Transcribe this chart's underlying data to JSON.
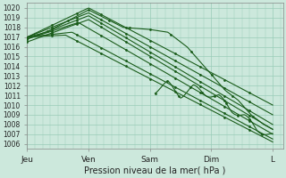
{
  "title": "Pression niveau de la mer( hPa )",
  "bg_color": "#cce8dc",
  "grid_color": "#99ccb8",
  "line_color": "#1a5c1a",
  "ylim": [
    1005.5,
    1020.5
  ],
  "yticks": [
    1006,
    1007,
    1008,
    1009,
    1010,
    1011,
    1012,
    1013,
    1014,
    1015,
    1016,
    1017,
    1018,
    1019,
    1020
  ],
  "xtick_labels": [
    "Jeu",
    "Ven",
    "Sam",
    "Dim",
    "L"
  ],
  "xtick_positions": [
    0,
    0.96,
    1.92,
    2.88,
    3.84
  ],
  "xlim": [
    0,
    4.0
  ],
  "lines": [
    {
      "x0": 0,
      "y0": 1017.0,
      "xpeak": 0.96,
      "ypeak": 1020.0,
      "xend": 3.84,
      "yend": 1010.0
    },
    {
      "x0": 0,
      "y0": 1017.0,
      "xpeak": 0.96,
      "ypeak": 1019.5,
      "xend": 3.84,
      "yend": 1009.0
    },
    {
      "x0": 0,
      "y0": 1016.8,
      "xpeak": 0.96,
      "ypeak": 1019.2,
      "xend": 3.84,
      "yend": 1008.0
    },
    {
      "x0": 0,
      "y0": 1016.5,
      "xpeak": 0.96,
      "ypeak": 1018.8,
      "xend": 3.84,
      "yend": 1007.5
    },
    {
      "x0": 0,
      "y0": 1016.8,
      "xpeak": 0.8,
      "ypeak": 1018.5,
      "xend": 3.84,
      "yend": 1007.0
    },
    {
      "x0": 0,
      "y0": 1017.0,
      "xpeak": 0.7,
      "ypeak": 1017.5,
      "xend": 3.84,
      "yend": 1006.5
    },
    {
      "x0": 0,
      "y0": 1017.0,
      "xpeak": 0.6,
      "ypeak": 1017.2,
      "xend": 3.84,
      "yend": 1006.2
    }
  ],
  "detail_line": {
    "points_x": [
      0,
      0.3,
      0.96,
      1.5,
      1.9,
      2.2,
      2.5,
      2.7,
      2.9,
      3.1,
      3.3,
      3.5,
      3.7,
      3.84
    ],
    "points_y": [
      1017.0,
      1017.5,
      1019.8,
      1018.0,
      1017.8,
      1017.5,
      1016.0,
      1014.5,
      1013.0,
      1011.5,
      1010.5,
      1009.0,
      1008.0,
      1007.5
    ]
  },
  "wiggly_line": {
    "points_x": [
      2.0,
      2.2,
      2.4,
      2.6,
      2.8,
      3.0,
      3.2,
      3.4,
      3.6,
      3.84
    ],
    "points_y": [
      1011.5,
      1012.2,
      1011.0,
      1011.8,
      1011.2,
      1010.8,
      1009.5,
      1008.8,
      1007.5,
      1006.8
    ]
  }
}
